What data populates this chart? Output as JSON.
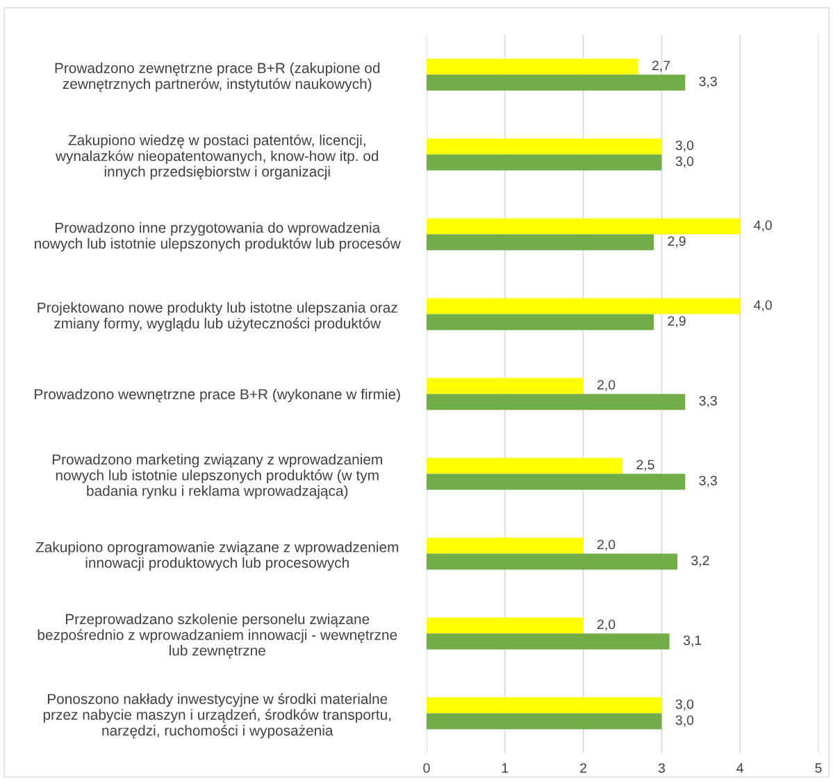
{
  "chart_data": {
    "type": "bar",
    "orientation": "horizontal",
    "categories": [
      "Prowadzono zewnętrzne prace B+R (zakupione od\nzewnętrznych partnerów, instytutów naukowych)",
      "Zakupiono wiedzę w postaci patentów, licencji,\nwynalazków nieopatentowanych, know-how itp. od\ninnych przedsiębiorstw i organizacji",
      "Prowadzono inne przygotowania do wprowadzenia\nnowych lub istotnie ulepszonych produktów lub procesów",
      "Projektowano nowe produkty lub istotne ulepszania oraz\nzmiany formy, wyglądu lub użyteczności produktów",
      "Prowadzono wewnętrzne prace B+R (wykonane w firmie)",
      "Prowadzono marketing związany z wprowadzaniem\nnowych lub istotnie ulepszonych produktów (w tym\nbadania rynku i reklama wprowadzająca)",
      "Zakupiono oprogramowanie związane z wprowadzeniem\ninnowacji produktowych lub procesowych",
      "Przeprowadzano szkolenie personelu związane\nbezpośrednio z wprowadzaniem innowacji - wewnętrzne\nlub zewnętrzne",
      "Ponoszono nakłady inwestycyjne w środki materialne\nprzez nabycie maszyn i urządzeń, środków transportu,\nnarzędzi, ruchomości i wyposażenia"
    ],
    "series": [
      {
        "color": "#ffff00",
        "values": [
          2.7,
          3.0,
          4.0,
          4.0,
          2.0,
          2.5,
          2.0,
          2.0,
          3.0
        ],
        "value_labels": [
          "2,7",
          "3,0",
          "4,0",
          "4,0",
          "2,0",
          "2,5",
          "2,0",
          "2,0",
          "3,0"
        ]
      },
      {
        "color": "#70ad47",
        "values": [
          3.3,
          3.0,
          2.9,
          2.9,
          3.3,
          3.3,
          3.2,
          3.1,
          3.0
        ],
        "value_labels": [
          "3,3",
          "3,0",
          "2,9",
          "2,9",
          "3,3",
          "3,3",
          "3,2",
          "3,1",
          "3,0"
        ]
      }
    ],
    "xlim": [
      0,
      5
    ],
    "xticks": [
      0,
      1,
      2,
      3,
      4,
      5
    ],
    "grid": "x",
    "legend": false
  }
}
